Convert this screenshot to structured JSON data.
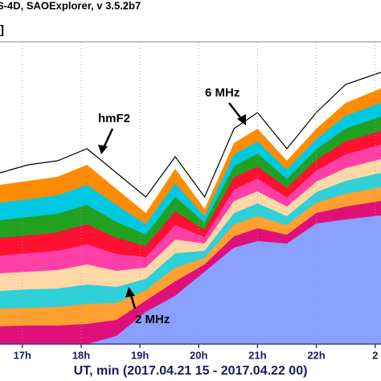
{
  "chart_data": {
    "type": "isodensity",
    "title": "S-4D, SAOExplorer, v 3.5.2b7",
    "subtitle": "]",
    "x_label": "UT, min (2017.04.21 15 - 2017.04.22 00)",
    "annotations": [
      "hmF2",
      "6 MHz",
      "2 MHz"
    ],
    "x": [
      16.62,
      17.1,
      17.6,
      18.1,
      18.6,
      19.1,
      19.6,
      20.1,
      20.6,
      21.0,
      21.5,
      22.0,
      22.5,
      23.1
    ],
    "xlim": [
      16.62,
      23.1
    ],
    "xticks": [
      {
        "value": 17,
        "label": "17h"
      },
      {
        "value": 18,
        "label": "18h"
      },
      {
        "value": 19,
        "label": "19h"
      },
      {
        "value": 20,
        "label": "20h"
      },
      {
        "value": 21,
        "label": "21h"
      },
      {
        "value": 22,
        "label": "22h"
      },
      {
        "value": 23,
        "label": "2"
      }
    ],
    "ylim": [
      0,
      376
    ],
    "grid": true,
    "series": [
      {
        "kind": "area",
        "color": "#ff8c00",
        "values": [
          198,
          203,
          208,
          223,
          193,
          163,
          218,
          168,
          250,
          268,
          228,
          268,
          300,
          318
        ]
      },
      {
        "kind": "area",
        "color": "#00c8e0",
        "values": [
          176,
          180,
          185,
          198,
          173,
          149,
          200,
          159,
          236,
          252,
          217,
          255,
          284,
          300
        ]
      },
      {
        "kind": "area",
        "color": "#22a022",
        "values": [
          154,
          158,
          162,
          173,
          152,
          136,
          183,
          151,
          221,
          237,
          205,
          242,
          268,
          283
        ]
      },
      {
        "kind": "area",
        "color": "#ff1030",
        "values": [
          132,
          135,
          139,
          149,
          132,
          122,
          165,
          142,
          207,
          221,
          194,
          229,
          252,
          265
        ]
      },
      {
        "kind": "area",
        "color": "#ff3fa8",
        "values": [
          110,
          113,
          116,
          124,
          112,
          108,
          148,
          133,
          192,
          206,
          182,
          216,
          236,
          248
        ]
      },
      {
        "kind": "area",
        "color": "#ffd8a8",
        "values": [
          88,
          90,
          92,
          99,
          91,
          95,
          130,
          125,
          178,
          190,
          171,
          202,
          219,
          230
        ]
      },
      {
        "kind": "area",
        "color": "#30d0d8",
        "values": [
          66,
          68,
          69,
          74,
          71,
          81,
          113,
          116,
          163,
          175,
          159,
          189,
          203,
          213
        ]
      },
      {
        "kind": "area",
        "color": "#ffa030",
        "values": [
          44,
          45,
          46,
          50,
          51,
          67,
          95,
          107,
          149,
          159,
          148,
          176,
          187,
          195
        ]
      },
      {
        "kind": "area",
        "color": "#e0107a",
        "values": [
          22,
          23,
          23,
          25,
          30,
          54,
          78,
          99,
          134,
          144,
          136,
          163,
          171,
          178
        ]
      },
      {
        "kind": "area",
        "color": "#8aa0ff",
        "values": [
          0,
          0,
          0,
          0,
          10,
          40,
          60,
          90,
          120,
          128,
          125,
          150,
          155,
          160
        ]
      },
      {
        "kind": "line",
        "color": "#000000",
        "values": [
          213,
          223,
          228,
          243,
          213,
          183,
          233,
          183,
          268,
          288,
          243,
          288,
          323,
          338
        ]
      }
    ]
  }
}
